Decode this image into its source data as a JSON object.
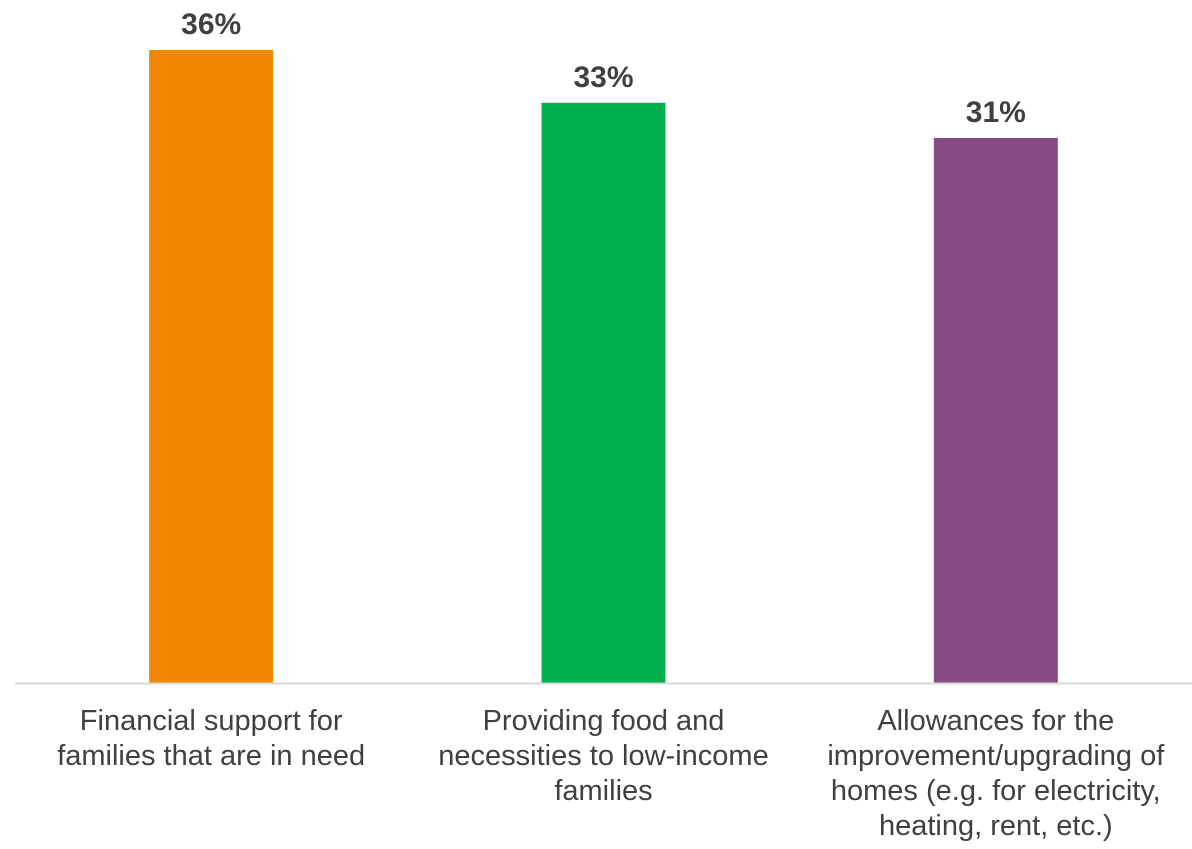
{
  "chart_data": {
    "type": "bar",
    "categories": [
      [
        "Financial support for",
        "families that are in need"
      ],
      [
        "Providing food and",
        "necessities to low-income",
        "families"
      ],
      [
        "Allowances for the",
        "improvement/upgrading of",
        "homes (e.g. for electricity,",
        "heating, rent, etc.)"
      ]
    ],
    "values": [
      36,
      33,
      31
    ],
    "value_labels": [
      "36%",
      "33%",
      "31%"
    ],
    "colors": [
      "#F08700",
      "#00B050",
      "#884A82"
    ],
    "axis_color": "#D9D9D9",
    "label_color": "#404040",
    "ylim": [
      0,
      36
    ],
    "grid": false,
    "legend": "none"
  }
}
